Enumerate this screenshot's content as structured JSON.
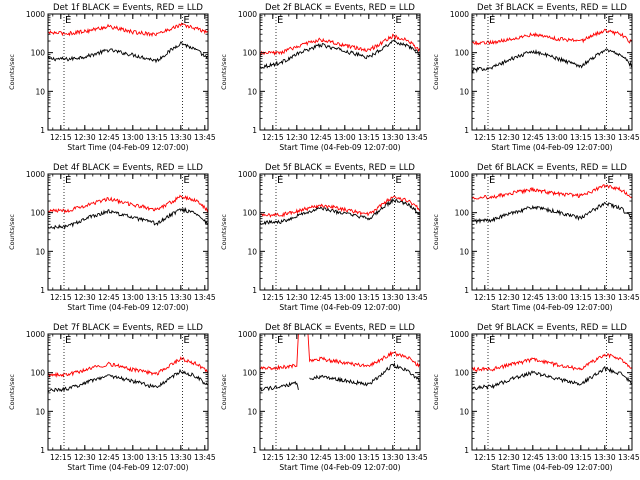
{
  "chart_data": {
    "type": "line",
    "xaxis_label": "Start Time (04-Feb-09 12:07:00)",
    "ylabel": "Counts/sec",
    "xticks": [
      "12:15",
      "12:30",
      "12:45",
      "13:00",
      "13:15",
      "13:30",
      "13:45"
    ],
    "yticks": [
      "1",
      "10",
      "100",
      "1000"
    ],
    "xlim": [
      "12:07",
      "13:47"
    ],
    "ylim": [
      1,
      1000
    ],
    "yscale": "log",
    "grid": false,
    "colors": {
      "events": "#000000",
      "lld": "#ff0000",
      "markers": "#000000"
    },
    "marker_lines": {
      "times": [
        "12:17",
        "13:31"
      ],
      "labels": [
        "E",
        "E"
      ],
      "style": "dotted"
    },
    "panels": [
      {
        "title": "Det 1f BLACK = Events, RED = LLD",
        "series": [
          {
            "color": "#000000",
            "x": [
              "12:07",
              "12:20",
              "12:32",
              "12:45",
              "13:00",
              "13:15",
              "13:30",
              "13:40",
              "13:47"
            ],
            "y": [
              70,
              68,
              82,
              118,
              88,
              62,
              180,
              115,
              70
            ]
          },
          {
            "color": "#ff0000",
            "x": [
              "12:07",
              "12:20",
              "12:32",
              "12:45",
              "13:00",
              "13:15",
              "13:30",
              "13:40",
              "13:47"
            ],
            "y": [
              330,
              315,
              370,
              480,
              340,
              300,
              530,
              420,
              330
            ]
          }
        ]
      },
      {
        "title": "Det 2f BLACK = Events, RED = LLD",
        "series": [
          {
            "color": "#000000",
            "x": [
              "12:07",
              "12:20",
              "12:32",
              "12:45",
              "13:00",
              "13:15",
              "13:30",
              "13:40",
              "13:47"
            ],
            "y": [
              42,
              55,
              100,
              160,
              110,
              75,
              200,
              150,
              90
            ]
          },
          {
            "color": "#ff0000",
            "x": [
              "12:07",
              "12:20",
              "12:32",
              "12:45",
              "13:00",
              "13:15",
              "13:30",
              "13:40",
              "13:47"
            ],
            "y": [
              95,
              100,
              155,
              220,
              150,
              115,
              270,
              200,
              110
            ]
          }
        ]
      },
      {
        "title": "Det 3f BLACK = Events, RED = LLD",
        "series": [
          {
            "color": "#000000",
            "x": [
              "12:07",
              "12:20",
              "12:32",
              "12:45",
              "13:00",
              "13:15",
              "13:30",
              "13:40",
              "13:47"
            ],
            "y": [
              35,
              42,
              70,
              110,
              72,
              45,
              120,
              90,
              45
            ]
          },
          {
            "color": "#ff0000",
            "x": [
              "12:07",
              "12:20",
              "12:32",
              "12:45",
              "13:00",
              "13:15",
              "13:30",
              "13:40",
              "13:47"
            ],
            "y": [
              180,
              185,
              230,
              300,
              230,
              200,
              380,
              300,
              180
            ]
          }
        ]
      },
      {
        "title": "Det 4f BLACK = Events, RED = LLD",
        "series": [
          {
            "color": "#000000",
            "x": [
              "12:07",
              "12:20",
              "12:32",
              "12:45",
              "13:00",
              "13:15",
              "13:30",
              "13:40",
              "13:47"
            ],
            "y": [
              40,
              45,
              75,
              110,
              75,
              52,
              125,
              95,
              50
            ]
          },
          {
            "color": "#ff0000",
            "x": [
              "12:07",
              "12:20",
              "12:32",
              "12:45",
              "13:00",
              "13:15",
              "13:30",
              "13:40",
              "13:47"
            ],
            "y": [
              110,
              115,
              160,
              230,
              160,
              120,
              260,
              200,
              115
            ]
          }
        ]
      },
      {
        "title": "Det 5f BLACK = Events, RED = LLD",
        "series": [
          {
            "color": "#000000",
            "x": [
              "12:07",
              "12:20",
              "12:32",
              "12:45",
              "13:00",
              "13:15",
              "13:30",
              "13:40",
              "13:47"
            ],
            "y": [
              55,
              58,
              90,
              130,
              95,
              70,
              210,
              160,
              90
            ]
          },
          {
            "color": "#ff0000",
            "x": [
              "12:07",
              "12:20",
              "12:32",
              "12:45",
              "13:00",
              "13:15",
              "13:30",
              "13:40",
              "13:47"
            ],
            "y": [
              85,
              88,
              115,
              160,
              120,
              90,
              260,
              200,
              120
            ]
          }
        ]
      },
      {
        "title": "Det 6f BLACK = Events, RED = LLD",
        "series": [
          {
            "color": "#000000",
            "x": [
              "12:07",
              "12:20",
              "12:32",
              "12:45",
              "13:00",
              "13:15",
              "13:30",
              "13:40",
              "13:47"
            ],
            "y": [
              60,
              65,
              100,
              140,
              105,
              72,
              180,
              130,
              75
            ]
          },
          {
            "color": "#ff0000",
            "x": [
              "12:07",
              "12:20",
              "12:32",
              "12:45",
              "13:00",
              "13:15",
              "13:30",
              "13:40",
              "13:47"
            ],
            "y": [
              250,
              255,
              320,
              400,
              310,
              270,
              500,
              390,
              250
            ]
          }
        ]
      },
      {
        "title": "Det 7f BLACK = Events, RED = LLD",
        "series": [
          {
            "color": "#000000",
            "x": [
              "12:07",
              "12:20",
              "12:32",
              "12:45",
              "13:00",
              "13:15",
              "13:30",
              "13:40",
              "13:47"
            ],
            "y": [
              35,
              38,
              60,
              85,
              60,
              42,
              110,
              80,
              45
            ]
          },
          {
            "color": "#ff0000",
            "x": [
              "12:07",
              "12:20",
              "12:32",
              "12:45",
              "13:00",
              "13:15",
              "13:30",
              "13:40",
              "13:47"
            ],
            "y": [
              85,
              90,
              125,
              170,
              120,
              95,
              230,
              170,
              100
            ]
          }
        ]
      },
      {
        "title": "Det 8f BLACK = Events, RED = LLD",
        "series": [
          {
            "color": "#000000",
            "x": [
              "12:07",
              "12:20",
              "12:30",
              "12:31",
              "12:37",
              "12:38",
              "12:45",
              "13:00",
              "13:15",
              "13:30",
              "13:40",
              "13:47"
            ],
            "y": [
              38,
              42,
              55,
              35,
              null,
              70,
              80,
              62,
              50,
              160,
              110,
              60
            ]
          },
          {
            "color": "#ff0000",
            "x": [
              "12:07",
              "12:20",
              "12:30",
              "12:31",
              "12:37",
              "12:38",
              "12:45",
              "13:00",
              "13:15",
              "13:30",
              "13:40",
              "13:47"
            ],
            "y": [
              130,
              135,
              160,
              1000,
              1000,
              200,
              230,
              180,
              145,
              330,
              240,
              140
            ]
          }
        ]
      },
      {
        "title": "Det 9f BLACK = Events, RED = LLD",
        "series": [
          {
            "color": "#000000",
            "x": [
              "12:07",
              "12:20",
              "12:32",
              "12:45",
              "13:00",
              "13:15",
              "13:30",
              "13:40",
              "13:47"
            ],
            "y": [
              40,
              45,
              70,
              100,
              70,
              50,
              130,
              95,
              55
            ]
          },
          {
            "color": "#ff0000",
            "x": [
              "12:07",
              "12:20",
              "12:32",
              "12:45",
              "13:00",
              "13:15",
              "13:30",
              "13:40",
              "13:47"
            ],
            "y": [
              120,
              125,
              165,
              220,
              160,
              125,
              300,
              220,
              120
            ]
          }
        ]
      }
    ]
  }
}
